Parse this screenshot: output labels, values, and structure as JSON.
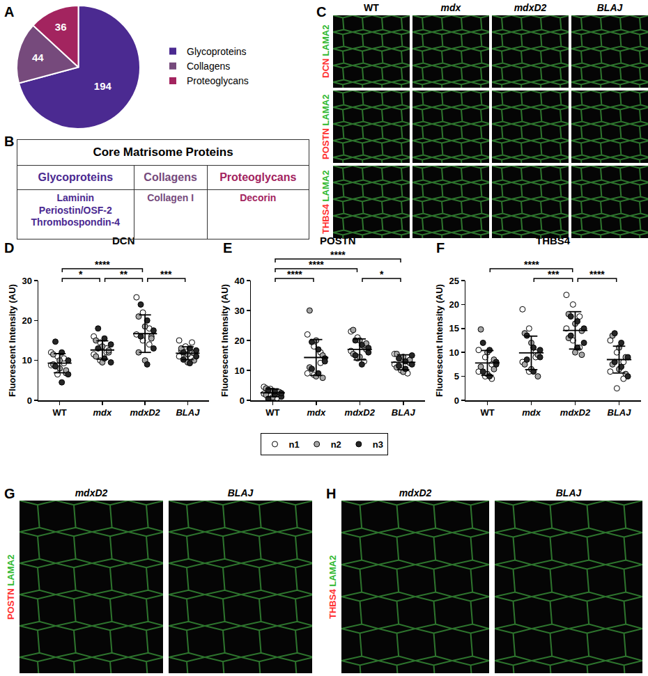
{
  "chart_data": [
    {
      "type": "pie",
      "categories": [
        "Glycoproteins",
        "Collagens",
        "Proteoglycans"
      ],
      "values": [
        194,
        44,
        36
      ],
      "colors": [
        "#4b2a91",
        "#764a7c",
        "#a3245f"
      ],
      "data_labels": true,
      "legend": "right"
    },
    {
      "type": "scatter",
      "title": "DCN",
      "ylabel": "Fluorescent Intensity (AU)",
      "categories": [
        "WT",
        "mdx",
        "mdxD2",
        "BLAJ"
      ],
      "ylim": [
        0,
        30
      ],
      "yticks": [
        0,
        10,
        20,
        30
      ],
      "grid": false,
      "legend": "bottom",
      "series": [
        {
          "name": "n1",
          "color": "#ffffff",
          "values": [
            [
              12.0,
              11.0,
              9.3,
              8.8,
              6.5,
              10.5
            ],
            [
              16.0,
              14.5,
              13.0,
              11.5,
              10.0,
              12.0
            ],
            [
              25.8,
              22.0,
              18.0,
              16.5,
              15.0,
              14.0
            ],
            [
              15.0,
              13.5,
              12.0,
              11.0,
              10.5,
              14.5
            ]
          ]
        },
        {
          "name": "n2",
          "color": "#a6a6a6",
          "values": [
            [
              11.5,
              8.0,
              6.8,
              9.0,
              10.0,
              7.5
            ],
            [
              15.0,
              13.5,
              12.0,
              11.0,
              9.5,
              12.5
            ],
            [
              21.0,
              18.5,
              16.0,
              12.0,
              10.0,
              15.5
            ],
            [
              12.5,
              11.5,
              10.0,
              13.0,
              9.5,
              11.8
            ]
          ]
        },
        {
          "name": "n3",
          "color": "#262626",
          "values": [
            [
              14.7,
              12.0,
              10.0,
              8.5,
              4.5,
              6.5
            ],
            [
              18.0,
              15.5,
              14.0,
              13.0,
              10.5,
              9.5
            ],
            [
              24.0,
              20.0,
              17.5,
              16.0,
              9.0,
              13.0
            ],
            [
              12.0,
              13.0,
              11.0,
              10.2,
              9.3,
              12.5
            ]
          ]
        }
      ],
      "mean": [
        9.3,
        12.6,
        16.7,
        11.8
      ],
      "sd": [
        2.4,
        2.3,
        4.7,
        1.6
      ],
      "comparisons": [
        {
          "groups": [
            "WT",
            "mdxD2"
          ],
          "label": "****"
        },
        {
          "groups": [
            "WT",
            "mdx"
          ],
          "label": "*"
        },
        {
          "groups": [
            "mdx",
            "mdxD2"
          ],
          "label": "**"
        },
        {
          "groups": [
            "mdxD2",
            "BLAJ"
          ],
          "label": "***"
        }
      ]
    },
    {
      "type": "scatter",
      "title": "POSTN",
      "ylabel": "Fluorescent Intensity (AU)",
      "categories": [
        "WT",
        "mdx",
        "mdxD2",
        "BLAJ"
      ],
      "ylim": [
        0,
        40
      ],
      "yticks": [
        0,
        10,
        20,
        30,
        40
      ],
      "grid": false,
      "legend": "bottom",
      "series": [
        {
          "name": "n1",
          "color": "#ffffff",
          "values": [
            [
              4.5,
              3.8,
              3.0,
              2.2,
              1.5,
              0.8
            ],
            [
              22.0,
              18.0,
              12.5,
              9.0,
              8.5,
              16.0
            ],
            [
              23.0,
              21.0,
              18.0,
              16.5,
              14.0,
              13.0
            ],
            [
              15.5,
              14.0,
              13.0,
              12.0,
              10.0,
              9.0
            ]
          ]
        },
        {
          "name": "n2",
          "color": "#a6a6a6",
          "values": [
            [
              4.0,
              3.2,
              2.5,
              1.8,
              1.0,
              2.8
            ],
            [
              30.0,
              20.0,
              15.0,
              11.0,
              8.0,
              7.5
            ],
            [
              23.5,
              20.0,
              17.0,
              15.5,
              14.5,
              19.0
            ],
            [
              15.5,
              14.5,
              12.5,
              11.0,
              9.5,
              13.5
            ]
          ]
        },
        {
          "name": "n3",
          "color": "#262626",
          "values": [
            [
              3.5,
              2.0,
              1.2,
              0.5,
              3.0,
              2.4
            ],
            [
              19.5,
              17.0,
              14.0,
              10.5,
              9.0,
              13.0
            ],
            [
              20.0,
              18.5,
              16.0,
              15.0,
              12.0,
              17.5
            ],
            [
              14.0,
              13.0,
              12.0,
              11.5,
              10.5,
              15.0
            ]
          ]
        }
      ],
      "mean": [
        2.5,
        14.3,
        17.0,
        12.7
      ],
      "sd": [
        1.3,
        6.0,
        3.5,
        2.5
      ],
      "comparisons": [
        {
          "groups": [
            "WT",
            "BLAJ"
          ],
          "label": "****"
        },
        {
          "groups": [
            "WT",
            "mdxD2"
          ],
          "label": "****"
        },
        {
          "groups": [
            "WT",
            "mdx"
          ],
          "label": "****"
        },
        {
          "groups": [
            "mdxD2",
            "BLAJ"
          ],
          "label": "*"
        }
      ]
    },
    {
      "type": "scatter",
      "title": "THBS4",
      "ylabel": "Fluorescent Intensity (AU)",
      "categories": [
        "WT",
        "mdx",
        "mdxD2",
        "BLAJ"
      ],
      "ylim": [
        0,
        25
      ],
      "yticks": [
        0,
        5,
        10,
        15,
        20,
        25
      ],
      "grid": false,
      "legend": "bottom",
      "series": [
        {
          "name": "n1",
          "color": "#ffffff",
          "values": [
            [
              10.5,
              9.0,
              7.5,
              6.0,
              5.0,
              4.5
            ],
            [
              19.0,
              15.0,
              10.0,
              8.0,
              6.0,
              9.0
            ],
            [
              22.0,
              20.0,
              17.5,
              15.0,
              12.5,
              11.0
            ],
            [
              12.5,
              10.0,
              8.0,
              6.0,
              2.5,
              4.5
            ]
          ]
        },
        {
          "name": "n2",
          "color": "#a6a6a6",
          "values": [
            [
              14.8,
              10.0,
              8.5,
              7.0,
              5.5,
              6.5
            ],
            [
              14.0,
              12.0,
              9.5,
              7.5,
              6.5,
              5.0
            ],
            [
              18.0,
              16.0,
              14.5,
              13.0,
              10.0,
              9.5
            ],
            [
              13.5,
              11.0,
              9.0,
              7.5,
              6.5,
              5.5
            ]
          ]
        },
        {
          "name": "n3",
          "color": "#262626",
          "values": [
            [
              12.0,
              10.5,
              8.0,
              6.0,
              5.0,
              7.5
            ],
            [
              13.5,
              11.0,
              9.0,
              8.5,
              6.0,
              10.5
            ],
            [
              17.5,
              16.5,
              15.0,
              13.5,
              11.0,
              12.0
            ],
            [
              14.0,
              12.0,
              9.0,
              8.0,
              7.0,
              5.0
            ]
          ]
        }
      ],
      "mean": [
        7.8,
        9.9,
        14.6,
        8.5
      ],
      "sd": [
        2.6,
        3.5,
        3.9,
        2.8
      ],
      "comparisons": [
        {
          "groups": [
            "WT",
            "mdxD2"
          ],
          "label": "****"
        },
        {
          "groups": [
            "mdx",
            "mdxD2"
          ],
          "label": "***"
        },
        {
          "groups": [
            "mdxD2",
            "BLAJ"
          ],
          "label": "****"
        }
      ]
    }
  ],
  "panel_labels": [
    "A",
    "B",
    "C",
    "D",
    "E",
    "F",
    "G",
    "H"
  ],
  "table": {
    "title": "Core Matrisome Proteins",
    "columns": [
      {
        "header": "Glycoproteins",
        "color": "#4b2a91",
        "items": [
          "Laminin",
          "Periostin/OSF-2",
          "Thrombospondin-4"
        ]
      },
      {
        "header": "Collagens",
        "color": "#764a7c",
        "items": [
          "Collagen I"
        ]
      },
      {
        "header": "Proteoglycans",
        "color": "#a3245f",
        "items": [
          "Decorin"
        ]
      }
    ]
  },
  "images_C": {
    "columns": [
      {
        "text": "WT",
        "italic": false
      },
      {
        "text": "mdx",
        "italic": true
      },
      {
        "text": "mdxD2",
        "italic": true
      },
      {
        "text": "BLAJ",
        "italic": true
      }
    ],
    "rows": [
      [
        {
          "text": "DCN",
          "color": "#ff3030"
        },
        {
          "text": "LAMA2",
          "color": "#2fb82f"
        }
      ],
      [
        {
          "text": "POSTN",
          "color": "#ff3030"
        },
        {
          "text": "LAMA2",
          "color": "#2fb82f"
        }
      ],
      [
        {
          "text": "THBS4",
          "color": "#ff3030"
        },
        {
          "text": "LAMA2",
          "color": "#2fb82f"
        }
      ]
    ]
  },
  "images_G": {
    "columns": [
      {
        "text": "mdxD2",
        "italic": true
      },
      {
        "text": "BLAJ",
        "italic": true
      }
    ],
    "stain": [
      {
        "text": "POSTN",
        "color": "#ff3030"
      },
      {
        "text": "LAMA2",
        "color": "#2fb82f"
      }
    ]
  },
  "images_H": {
    "columns": [
      {
        "text": "mdxD2",
        "italic": true
      },
      {
        "text": "BLAJ",
        "italic": true
      }
    ],
    "stain": [
      {
        "text": "THBS4",
        "color": "#ff3030"
      },
      {
        "text": "LAMA2",
        "color": "#2fb82f"
      }
    ]
  }
}
